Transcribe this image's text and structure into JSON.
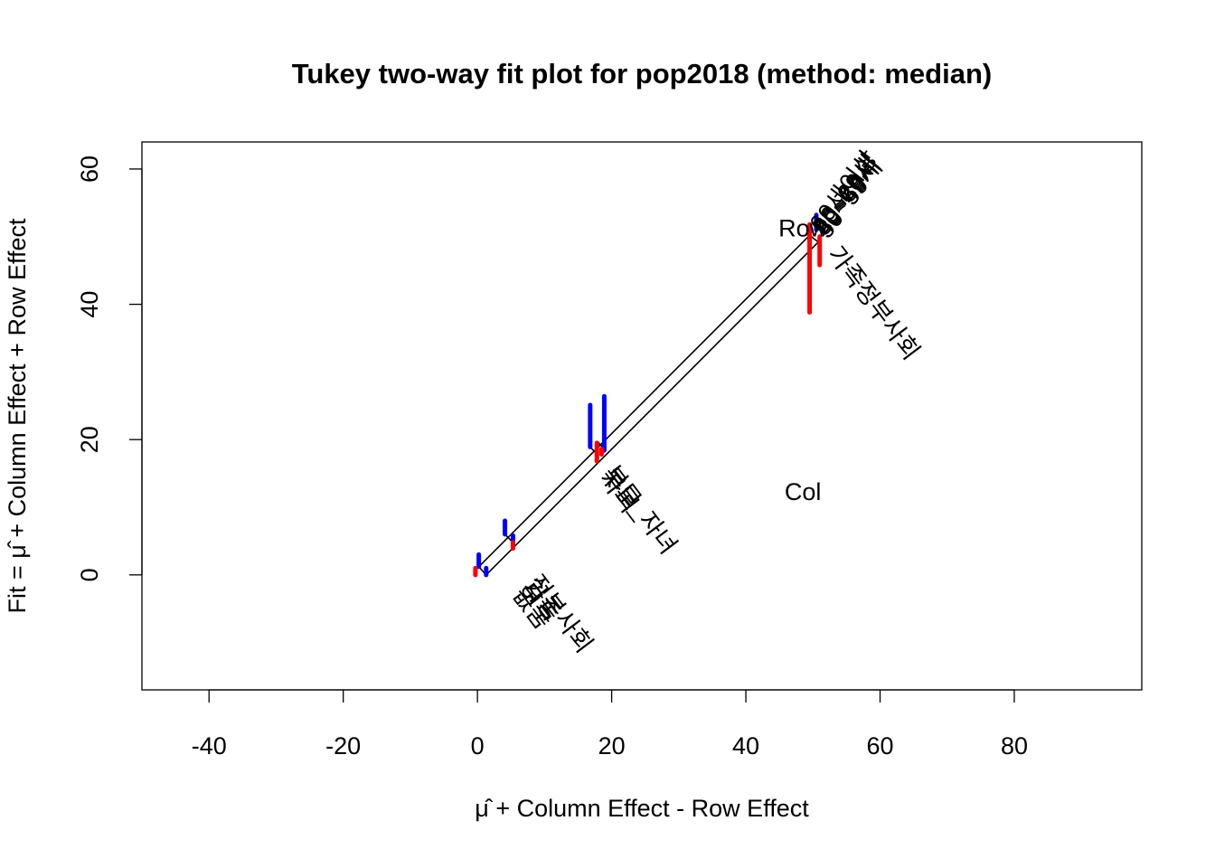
{
  "chart_data": {
    "type": "scatter",
    "title": "Tukey two-way fit plot for pop2018 (method: median)",
    "xlabel": "μ̂ + Column Effect - Row Effect",
    "ylabel": "Fit = μ̂ + Column Effect + Row Effect",
    "xlim": [
      -50,
      99
    ],
    "ylim": [
      -17,
      64
    ],
    "xticks": [
      -40,
      -20,
      0,
      20,
      40,
      60,
      80
    ],
    "yticks": [
      0,
      20,
      40,
      60
    ],
    "grid": false,
    "line_color": "#000000",
    "residual_colors": {
      "positive": "#0000ff",
      "negative": "#ff0000"
    },
    "grid_lines": [
      {
        "from": [
          0.2,
          1.2
        ],
        "to": [
          49.5,
          50.2
        ]
      },
      {
        "from": [
          1.3,
          0.0
        ],
        "to": [
          50.8,
          49.2
        ]
      },
      {
        "from": [
          0.2,
          1.2
        ],
        "to": [
          1.3,
          0.0
        ]
      },
      {
        "from": [
          4.1,
          6.0
        ],
        "to": [
          5.3,
          4.8
        ]
      },
      {
        "from": [
          16.8,
          18.9
        ],
        "to": [
          18.0,
          17.7
        ]
      },
      {
        "from": [
          18.0,
          19.6
        ],
        "to": [
          19.1,
          18.4
        ]
      },
      {
        "from": [
          49.5,
          50.2
        ],
        "to": [
          50.8,
          49.2
        ]
      }
    ],
    "residuals": [
      {
        "x": 0.2,
        "fit": 1.2,
        "value": 1.8
      },
      {
        "x": 1.3,
        "fit": 0.0,
        "value": 1.0
      },
      {
        "x": -0.3,
        "fit": 1.0,
        "value": -1.0
      },
      {
        "x": 4.1,
        "fit": 6.0,
        "value": 2.0
      },
      {
        "x": 5.3,
        "fit": 4.8,
        "value": 1.0
      },
      {
        "x": 5.3,
        "fit": 4.8,
        "value": -0.9
      },
      {
        "x": 16.8,
        "fit": 18.9,
        "value": 6.2
      },
      {
        "x": 18.9,
        "fit": 18.4,
        "value": 8.0
      },
      {
        "x": 17.8,
        "fit": 19.5,
        "value": -2.7
      },
      {
        "x": 18.5,
        "fit": 18.6,
        "value": -0.8
      },
      {
        "x": 50.5,
        "fit": 51.0,
        "value": 2.2
      },
      {
        "x": 49.5,
        "fit": 51.8,
        "value": -13.0
      },
      {
        "x": 51.0,
        "fit": 50.0,
        "value": -4.2
      }
    ],
    "row_labels": [
      {
        "text": "60세이상",
        "x": 50.5,
        "y": 51.0
      },
      {
        "text": "20~29세",
        "x": 50.9,
        "y": 50.7
      },
      {
        "text": "30~39세",
        "x": 51.1,
        "y": 50.5
      },
      {
        "text": "40~49세",
        "x": 51.3,
        "y": 50.3
      },
      {
        "text": "50~59세",
        "x": 51.5,
        "y": 50.1
      }
    ],
    "column_labels": [
      {
        "text": "가족정부사회",
        "x": 52.8,
        "y": 48.0
      },
      {
        "text": "부모_자녀",
        "x": 19.4,
        "y": 15.6
      },
      {
        "text": "부모",
        "x": 19.0,
        "y": 15.2
      },
      {
        "text": "자녀",
        "x": 18.8,
        "y": 14.8
      },
      {
        "text": "정부사회",
        "x": 8.1,
        "y": -0.6
      },
      {
        "text": "가족",
        "x": 7.3,
        "y": -1.2
      },
      {
        "text": "모두",
        "x": 6.7,
        "y": -1.8
      },
      {
        "text": "없음",
        "x": 5.9,
        "y": -2.4
      }
    ],
    "annotations": [
      {
        "text": "Row",
        "x": 48.5,
        "y": 51.0
      },
      {
        "text": "Col",
        "x": 48.5,
        "y": 12.0
      }
    ]
  }
}
